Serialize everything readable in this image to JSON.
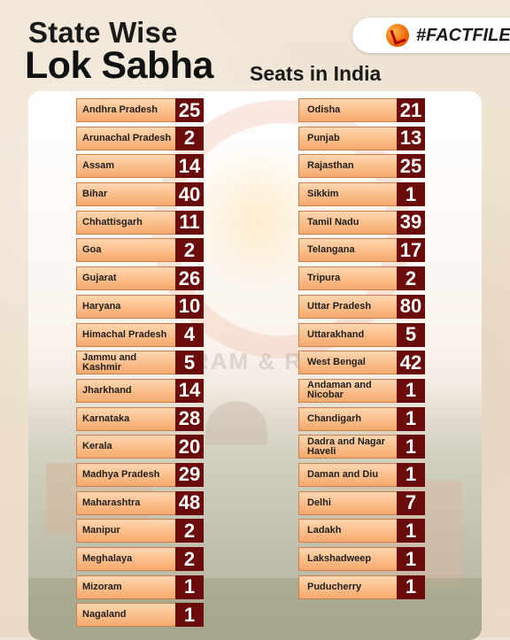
{
  "header": {
    "line1": "State Wise",
    "line2": "Lok Sabha",
    "line3": "Seats in India",
    "badge": "#FACTFILE"
  },
  "watermark": {
    "text": "RAM & R"
  },
  "states_left": [
    {
      "name": "Andhra Pradesh",
      "seats": "25"
    },
    {
      "name": "Arunachal Pradesh",
      "seats": "2"
    },
    {
      "name": "Assam",
      "seats": "14"
    },
    {
      "name": "Bihar",
      "seats": "40"
    },
    {
      "name": "Chhattisgarh",
      "seats": "11"
    },
    {
      "name": "Goa",
      "seats": "2"
    },
    {
      "name": "Gujarat",
      "seats": "26"
    },
    {
      "name": "Haryana",
      "seats": "10"
    },
    {
      "name": "Himachal Pradesh",
      "seats": "4"
    },
    {
      "name": "Jammu and Kashmir",
      "seats": "5"
    },
    {
      "name": "Jharkhand",
      "seats": "14"
    },
    {
      "name": "Karnataka",
      "seats": "28"
    },
    {
      "name": "Kerala",
      "seats": "20"
    },
    {
      "name": "Madhya Pradesh",
      "seats": "29"
    },
    {
      "name": "Maharashtra",
      "seats": "48"
    },
    {
      "name": "Manipur",
      "seats": "2"
    },
    {
      "name": "Meghalaya",
      "seats": "2"
    },
    {
      "name": "Mizoram",
      "seats": "1"
    },
    {
      "name": "Nagaland",
      "seats": "1"
    }
  ],
  "states_right": [
    {
      "name": "Odisha",
      "seats": "21"
    },
    {
      "name": "Punjab",
      "seats": "13"
    },
    {
      "name": "Rajasthan",
      "seats": "25"
    },
    {
      "name": "Sikkim",
      "seats": "1"
    },
    {
      "name": "Tamil Nadu",
      "seats": "39"
    },
    {
      "name": "Telangana",
      "seats": "17"
    },
    {
      "name": "Tripura",
      "seats": "2"
    },
    {
      "name": "Uttar Pradesh",
      "seats": "80"
    },
    {
      "name": "Uttarakhand",
      "seats": "5"
    },
    {
      "name": "West Bengal",
      "seats": "42"
    },
    {
      "name": "Andaman and Nicobar",
      "seats": "1"
    },
    {
      "name": "Chandigarh",
      "seats": "1"
    },
    {
      "name": "Dadra and Nagar Haveli",
      "seats": "1"
    },
    {
      "name": "Daman and Diu",
      "seats": "1"
    },
    {
      "name": "Delhi",
      "seats": "7"
    },
    {
      "name": "Ladakh",
      "seats": "1"
    },
    {
      "name": "Lakshadweep",
      "seats": "1"
    },
    {
      "name": "Puducherry",
      "seats": "1"
    }
  ],
  "colors": {
    "seat_box": "#6b0c0c",
    "name_box_top": "#ffd6b0",
    "name_box_bottom": "#f7a96c"
  },
  "icons": {
    "brand_logo": "sun-check-logo-icon"
  }
}
